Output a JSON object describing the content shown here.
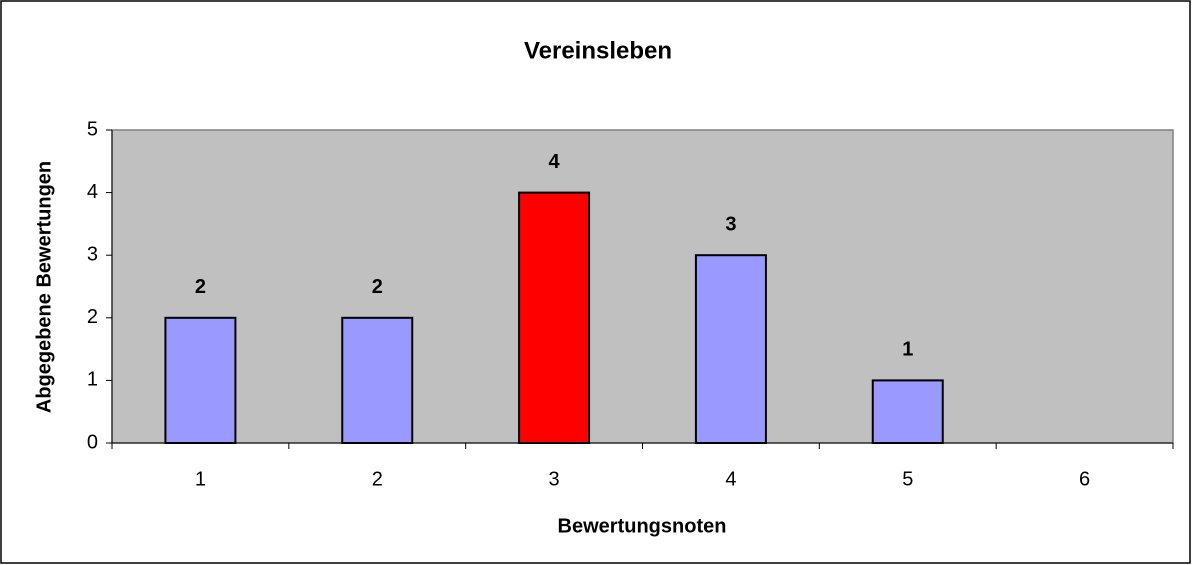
{
  "chart_data": {
    "type": "bar",
    "title": "Vereinsleben",
    "x_label": "Bewertungsnoten",
    "y_label": "Abgegebene Bewertungen",
    "categories": [
      "1",
      "2",
      "3",
      "4",
      "5",
      "6"
    ],
    "values": [
      2,
      2,
      4,
      3,
      1,
      0
    ],
    "colors": [
      "#9999ff",
      "#9999ff",
      "#ff0000",
      "#9999ff",
      "#9999ff",
      "#9999ff"
    ],
    "ylim": [
      0,
      5
    ],
    "yticks": [
      0,
      1,
      2,
      3,
      4,
      5
    ],
    "grid": false
  }
}
